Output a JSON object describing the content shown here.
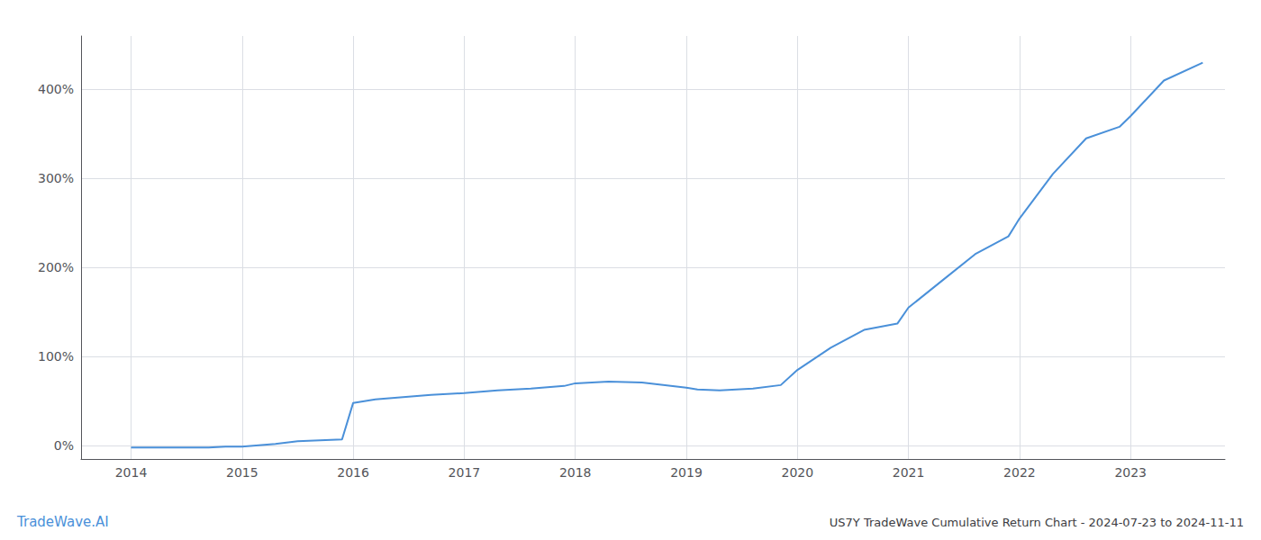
{
  "chart_data": {
    "type": "line",
    "title": "US7Y TradeWave Cumulative Return Chart - 2024-07-23 to 2024-11-11",
    "annotations": [
      "TradeWave.AI"
    ],
    "color": "#4a90d9",
    "grid": true,
    "x": [
      2014.0,
      2014.15,
      2014.3,
      2014.5,
      2014.7,
      2014.85,
      2015.0,
      2015.1,
      2015.3,
      2015.5,
      2015.7,
      2015.9,
      2016.0,
      2016.2,
      2016.5,
      2016.7,
      2017.0,
      2017.3,
      2017.6,
      2017.9,
      2018.0,
      2018.3,
      2018.6,
      2019.0,
      2019.1,
      2019.3,
      2019.6,
      2019.85,
      2020.0,
      2020.3,
      2020.6,
      2020.9,
      2021.0,
      2021.3,
      2021.6,
      2021.9,
      2022.0,
      2022.3,
      2022.6,
      2022.9,
      2023.0,
      2023.3,
      2023.65
    ],
    "values": [
      -2,
      -2,
      -2,
      -2,
      -2,
      -1,
      -1,
      0,
      2,
      5,
      6,
      7,
      48,
      52,
      55,
      57,
      59,
      62,
      64,
      67,
      70,
      72,
      71,
      65,
      63,
      62,
      64,
      68,
      85,
      110,
      130,
      137,
      155,
      185,
      215,
      235,
      255,
      305,
      345,
      358,
      370,
      410,
      430
    ],
    "xlim": [
      2013.55,
      2023.85
    ],
    "xticks": [
      2014,
      2015,
      2016,
      2017,
      2018,
      2019,
      2020,
      2021,
      2022,
      2023
    ],
    "ylim": [
      -15,
      460
    ],
    "yticks": [
      {
        "value": 0,
        "label": "0%"
      },
      {
        "value": 100,
        "label": "100%"
      },
      {
        "value": 200,
        "label": "200%"
      },
      {
        "value": 300,
        "label": "300%"
      },
      {
        "value": 400,
        "label": "400%"
      }
    ]
  }
}
